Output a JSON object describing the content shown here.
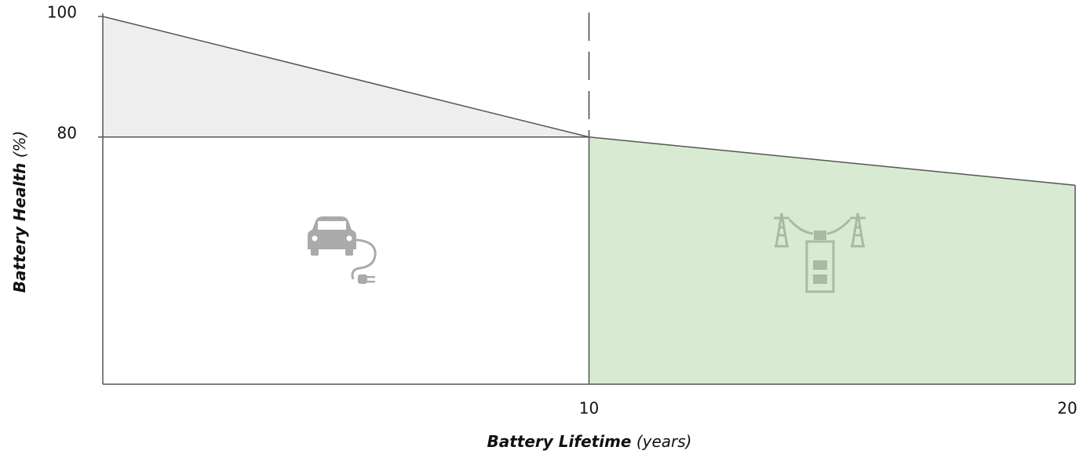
{
  "chart_data": {
    "type": "line",
    "x": [
      0,
      10,
      20
    ],
    "values": [
      100,
      80,
      72
    ],
    "color": "#555555",
    "xlim": [
      0,
      20
    ],
    "ylim": [
      39,
      100
    ],
    "xticks": [
      10,
      20
    ],
    "yticks": [
      80,
      100
    ],
    "x_label": "Battery Lifetime",
    "x_unit": "(years)",
    "y_label": "Battery Health",
    "y_unit": "(%)",
    "first_life_fill": "#eeeeee",
    "second_life_fill": "#d9ead3"
  }
}
